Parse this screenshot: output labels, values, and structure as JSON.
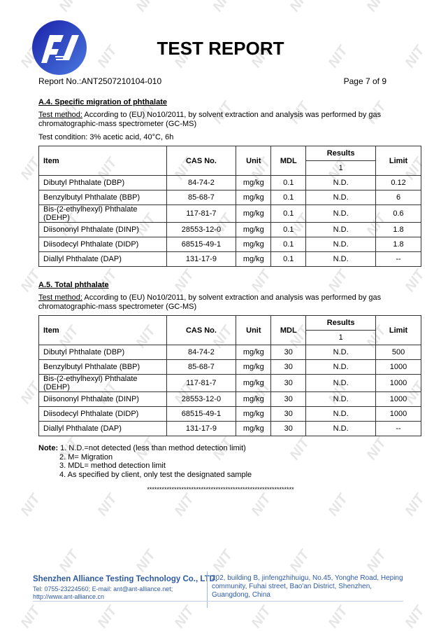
{
  "watermark": "NIT",
  "colors": {
    "logo_blue": "#2233b8",
    "footer_blue": "#2e5aa6"
  },
  "header": {
    "title": "TEST REPORT",
    "report_no": "Report No.:ANT2507210104-010",
    "page": "Page 7 of 9"
  },
  "section_a4": {
    "heading": "A.4. Specific migration of phthalate",
    "method_label": "Test method:",
    "method_text": " According to (EU) No10/2011, by solvent extraction and analysis was performed by gas chromatographic-mass spectrometer (GC-MS)",
    "condition": "Test condition: 3% acetic acid, 40°C, 6h",
    "columns": {
      "item": "Item",
      "cas": "CAS No.",
      "unit": "Unit",
      "mdl": "MDL",
      "results": "Results",
      "result_sub": "1",
      "limit": "Limit"
    },
    "rows": [
      {
        "item": "Dibutyl Phthalate (DBP)",
        "cas": "84-74-2",
        "unit": "mg/kg",
        "mdl": "0.1",
        "result": "N.D.",
        "limit": "0.12"
      },
      {
        "item": "Benzylbutyl Phthalate (BBP)",
        "cas": "85-68-7",
        "unit": "mg/kg",
        "mdl": "0.1",
        "result": "N.D.",
        "limit": "6"
      },
      {
        "item": "Bis-(2-ethylhexyl) Phthalate (DEHP)",
        "cas": "117-81-7",
        "unit": "mg/kg",
        "mdl": "0.1",
        "result": "N.D.",
        "limit": "0.6"
      },
      {
        "item": "Diisononyl Phthalate (DINP)",
        "cas": "28553-12-0",
        "unit": "mg/kg",
        "mdl": "0.1",
        "result": "N.D.",
        "limit": "1.8"
      },
      {
        "item": "Diisodecyl Phthalate (DIDP)",
        "cas": "68515-49-1",
        "unit": "mg/kg",
        "mdl": "0.1",
        "result": "N.D.",
        "limit": "1.8"
      },
      {
        "item": "Diallyl Phthalate (DAP)",
        "cas": "131-17-9",
        "unit": "mg/kg",
        "mdl": "0.1",
        "result": "N.D.",
        "limit": "--"
      }
    ]
  },
  "section_a5": {
    "heading": "A.5. Total phthalate",
    "method_label": "Test method:",
    "method_text": " According to (EU) No10/2011, by solvent extraction and analysis was performed by gas chromatographic-mass spectrometer (GC-MS)",
    "columns": {
      "item": "Item",
      "cas": "CAS No.",
      "unit": "Unit",
      "mdl": "MDL",
      "results": "Results",
      "result_sub": "1",
      "limit": "Limit"
    },
    "rows": [
      {
        "item": "Dibutyl Phthalate (DBP)",
        "cas": "84-74-2",
        "unit": "mg/kg",
        "mdl": "30",
        "result": "N.D.",
        "limit": "500"
      },
      {
        "item": "Benzylbutyl Phthalate (BBP)",
        "cas": "85-68-7",
        "unit": "mg/kg",
        "mdl": "30",
        "result": "N.D.",
        "limit": "1000"
      },
      {
        "item": "Bis-(2-ethylhexyl) Phthalate (DEHP)",
        "cas": "117-81-7",
        "unit": "mg/kg",
        "mdl": "30",
        "result": "N.D.",
        "limit": "1000"
      },
      {
        "item": "Diisononyl Phthalate (DINP)",
        "cas": "28553-12-0",
        "unit": "mg/kg",
        "mdl": "30",
        "result": "N.D.",
        "limit": "1000"
      },
      {
        "item": "Diisodecyl Phthalate (DIDP)",
        "cas": "68515-49-1",
        "unit": "mg/kg",
        "mdl": "30",
        "result": "N.D.",
        "limit": "1000"
      },
      {
        "item": "Diallyl Phthalate (DAP)",
        "cas": "131-17-9",
        "unit": "mg/kg",
        "mdl": "30",
        "result": "N.D.",
        "limit": "--"
      }
    ]
  },
  "notes": {
    "label": "Note:",
    "items": [
      "1. N.D.=not detected (less than method detection limit)",
      "2. M= Migration",
      "3. MDL= method detection limit",
      "4. As specified by client, only test the designated sample"
    ]
  },
  "end_marker": "************************************************************",
  "footer": {
    "company": "Shenzhen Alliance Testing Technology Co., LTD.",
    "contact_line1": "Tel: 0755-23224560; E-mail: ant@ant-alliance.net;",
    "contact_line2": "http://www.ant-alliance.cn",
    "address": "202, building B, jinfengzhihuigu, No.45, Yonghe Road, Heping community, Fuhai street, Bao'an District, Shenzhen, Guangdong, China"
  }
}
